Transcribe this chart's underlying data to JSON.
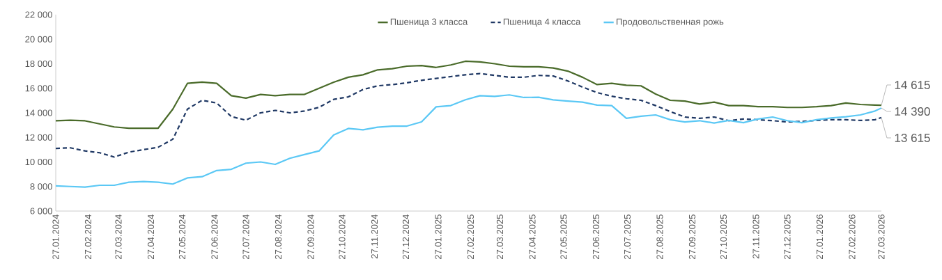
{
  "chart_data": {
    "type": "line",
    "x": [
      "2024-01-27",
      "2024-02-10",
      "2024-02-24",
      "2024-03-09",
      "2024-03-23",
      "2024-04-06",
      "2024-04-20",
      "2024-05-04",
      "2024-05-18",
      "2024-06-01",
      "2024-06-15",
      "2024-06-29",
      "2024-07-13",
      "2024-07-27",
      "2024-08-10",
      "2024-08-24",
      "2024-09-07",
      "2024-09-21",
      "2024-10-05",
      "2024-10-19",
      "2024-11-02",
      "2024-11-16",
      "2024-11-30",
      "2024-12-14",
      "2024-12-28",
      "2025-01-11",
      "2025-01-25",
      "2025-02-08",
      "2025-02-22",
      "2025-03-08",
      "2025-03-22",
      "2025-04-05",
      "2025-04-19",
      "2025-05-03",
      "2025-05-17",
      "2025-05-31",
      "2025-06-14",
      "2025-06-28",
      "2025-07-12",
      "2025-07-26",
      "2025-08-09",
      "2025-08-23",
      "2025-09-06",
      "2025-09-20",
      "2025-10-04",
      "2025-10-18",
      "2025-11-01",
      "2025-11-15",
      "2025-11-29",
      "2025-12-13",
      "2025-12-27",
      "2026-01-10",
      "2026-01-24",
      "2026-02-07",
      "2026-02-21",
      "2026-03-07",
      "2026-03-21",
      "2026-03-27"
    ],
    "series": [
      {
        "name": "Пшеница 3 класса",
        "color": "#4a6b2a",
        "line_style": "solid",
        "values": [
          13350,
          13400,
          13350,
          13100,
          12850,
          12750,
          12750,
          12750,
          14300,
          16400,
          16500,
          16400,
          15400,
          15200,
          15500,
          15400,
          15500,
          15500,
          16000,
          16500,
          16900,
          17100,
          17500,
          17600,
          17800,
          17850,
          17700,
          17900,
          18200,
          18150,
          18000,
          17800,
          17750,
          17750,
          17650,
          17400,
          16900,
          16300,
          16400,
          16250,
          16200,
          15530,
          15020,
          14960,
          14720,
          14870,
          14590,
          14590,
          14500,
          14500,
          14440,
          14440,
          14500,
          14590,
          14800,
          14680,
          14630,
          14615
        ]
      },
      {
        "name": "Пшеница 4 класса",
        "color": "#1f3864",
        "line_style": "dashed",
        "values": [
          11100,
          11150,
          10900,
          10750,
          10400,
          10800,
          11000,
          11200,
          11850,
          14300,
          15020,
          14800,
          13700,
          13400,
          14000,
          14200,
          14000,
          14150,
          14450,
          15100,
          15300,
          15900,
          16200,
          16300,
          16450,
          16650,
          16800,
          16950,
          17100,
          17200,
          17050,
          16900,
          16900,
          17050,
          17000,
          16600,
          16100,
          15650,
          15350,
          15150,
          15020,
          14590,
          14100,
          13660,
          13550,
          13660,
          13360,
          13500,
          13440,
          13360,
          13260,
          13300,
          13380,
          13440,
          13440,
          13380,
          13440,
          13615
        ]
      },
      {
        "name": "Продовольственная рожь",
        "color": "#5bc8f5",
        "line_style": "solid",
        "values": [
          8050,
          8000,
          7950,
          8100,
          8100,
          8350,
          8400,
          8350,
          8200,
          8700,
          8800,
          9300,
          9400,
          9900,
          10000,
          9800,
          10300,
          10600,
          10900,
          12200,
          12730,
          12620,
          12830,
          12920,
          12920,
          13260,
          14490,
          14590,
          15060,
          15400,
          15340,
          15460,
          15250,
          15270,
          15060,
          14960,
          14870,
          14630,
          14590,
          13550,
          13720,
          13830,
          13440,
          13260,
          13360,
          13170,
          13380,
          13200,
          13500,
          13660,
          13360,
          13200,
          13440,
          13580,
          13680,
          13830,
          14150,
          14390
        ]
      }
    ],
    "xlim": [
      "2024-01-27",
      "2026-03-27"
    ],
    "xticks": [
      {
        "value": "2024-01-27",
        "label": "27.01.2024"
      },
      {
        "value": "2024-02-27",
        "label": "27.02.2024"
      },
      {
        "value": "2024-03-27",
        "label": "27.03.2024"
      },
      {
        "value": "2024-04-27",
        "label": "27.04.2024"
      },
      {
        "value": "2024-05-27",
        "label": "27.05.2024"
      },
      {
        "value": "2024-06-27",
        "label": "27.06.2024"
      },
      {
        "value": "2024-07-27",
        "label": "27.07.2024"
      },
      {
        "value": "2024-08-27",
        "label": "27.08.2024"
      },
      {
        "value": "2024-09-27",
        "label": "27.09.2024"
      },
      {
        "value": "2024-10-27",
        "label": "27.10.2024"
      },
      {
        "value": "2024-11-27",
        "label": "27.11.2024"
      },
      {
        "value": "2024-12-27",
        "label": "27.12.2024"
      },
      {
        "value": "2025-01-27",
        "label": "27.01.2025"
      },
      {
        "value": "2025-02-27",
        "label": "27.02.2025"
      },
      {
        "value": "2025-03-27",
        "label": "27.03.2025"
      },
      {
        "value": "2025-04-27",
        "label": "27.04.2025"
      },
      {
        "value": "2025-05-27",
        "label": "27.05.2025"
      },
      {
        "value": "2025-06-27",
        "label": "27.06.2025"
      },
      {
        "value": "2025-07-27",
        "label": "27.07.2025"
      },
      {
        "value": "2025-08-27",
        "label": "27.08.2025"
      },
      {
        "value": "2025-09-27",
        "label": "27.09.2025"
      },
      {
        "value": "2025-10-27",
        "label": "27.10.2025"
      },
      {
        "value": "2025-11-27",
        "label": "27.11.2025"
      },
      {
        "value": "2025-12-27",
        "label": "27.12.2025"
      },
      {
        "value": "2026-01-27",
        "label": "27.01.2026"
      },
      {
        "value": "2026-02-27",
        "label": "27.02.2026"
      },
      {
        "value": "2026-03-27",
        "label": "27.03.2026"
      }
    ],
    "ylim": [
      6000,
      22000
    ],
    "yticks": [
      {
        "value": 6000,
        "label": "6 000"
      },
      {
        "value": 8000,
        "label": "8 000"
      },
      {
        "value": 10000,
        "label": "10 000"
      },
      {
        "value": 12000,
        "label": "12 000"
      },
      {
        "value": 14000,
        "label": "14 000"
      },
      {
        "value": 16000,
        "label": "16 000"
      },
      {
        "value": 18000,
        "label": "18 000"
      },
      {
        "value": 20000,
        "label": "20 000"
      },
      {
        "value": 22000,
        "label": "22 000"
      }
    ],
    "legend": "top",
    "annotations": [
      {
        "text": "14 615",
        "x": "2026-03-27",
        "y": 14615
      },
      {
        "text": "14 390",
        "x": "2026-03-27",
        "y": 14390
      },
      {
        "text": "13 615",
        "x": "2026-03-27",
        "y": 13615
      }
    ]
  }
}
